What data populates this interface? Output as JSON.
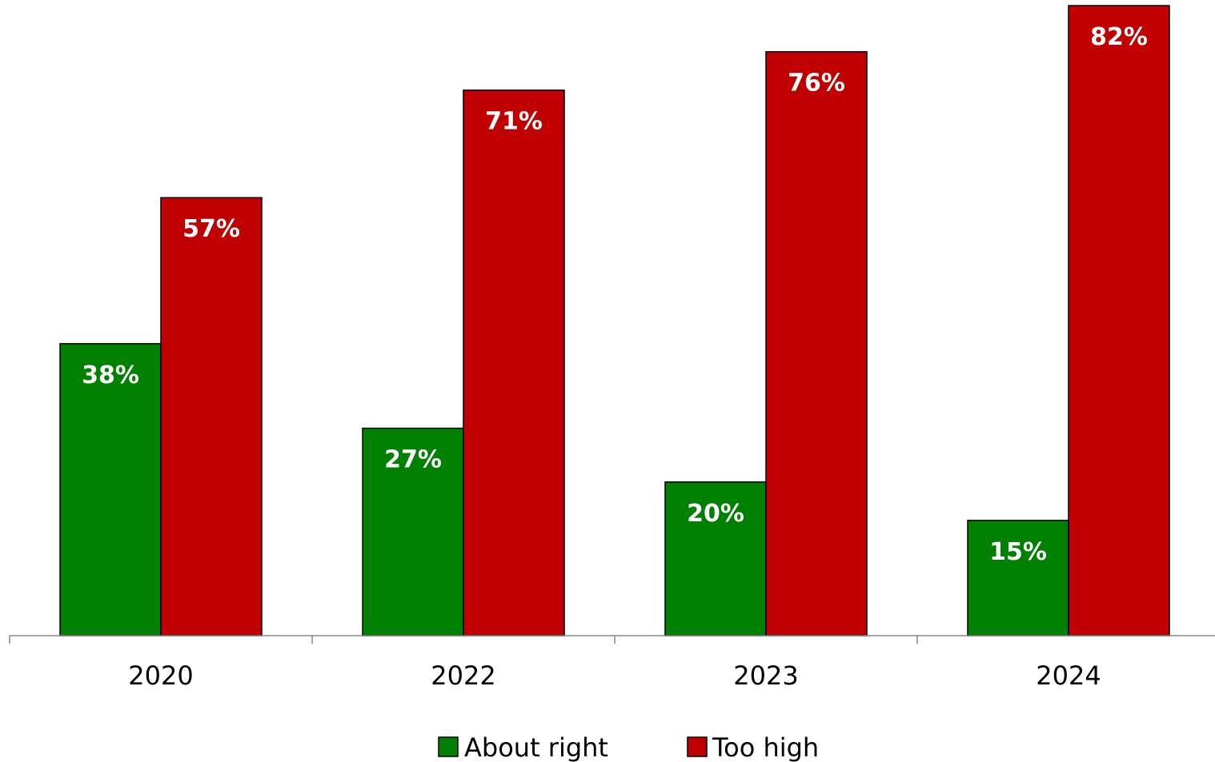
{
  "chart_data": {
    "type": "bar",
    "categories": [
      "2020",
      "2022",
      "2023",
      "2024"
    ],
    "series": [
      {
        "name": "About right",
        "color": "#008000",
        "values": [
          38,
          27,
          20,
          15
        ],
        "labels": [
          "38%",
          "27%",
          "20%",
          "15%"
        ]
      },
      {
        "name": "Too high",
        "color": "#C00000",
        "values": [
          57,
          71,
          76,
          82
        ],
        "labels": [
          "57%",
          "71%",
          "76%",
          "82%"
        ]
      }
    ],
    "title": "",
    "xlabel": "",
    "ylabel": "",
    "ylim": [
      0,
      82
    ],
    "grid": false,
    "legend": "bottom"
  }
}
